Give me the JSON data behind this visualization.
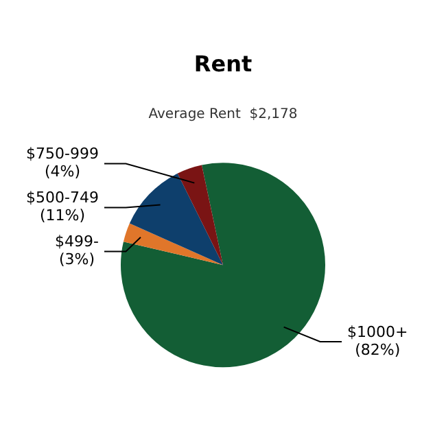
{
  "chart_data": {
    "type": "pie",
    "title": "Rent",
    "subtitle": "Average Rent  $2,178",
    "categories": [
      "$1000+",
      "$499-",
      "$500-749",
      "$750-999"
    ],
    "values": [
      82,
      3,
      11,
      4
    ],
    "value_labels": [
      "(82%)",
      "(3%)",
      "(11%)",
      "(4%)"
    ],
    "colors": [
      "#135e35",
      "#e0762a",
      "#0e3f6c",
      "#7a1414"
    ],
    "legend": false
  }
}
